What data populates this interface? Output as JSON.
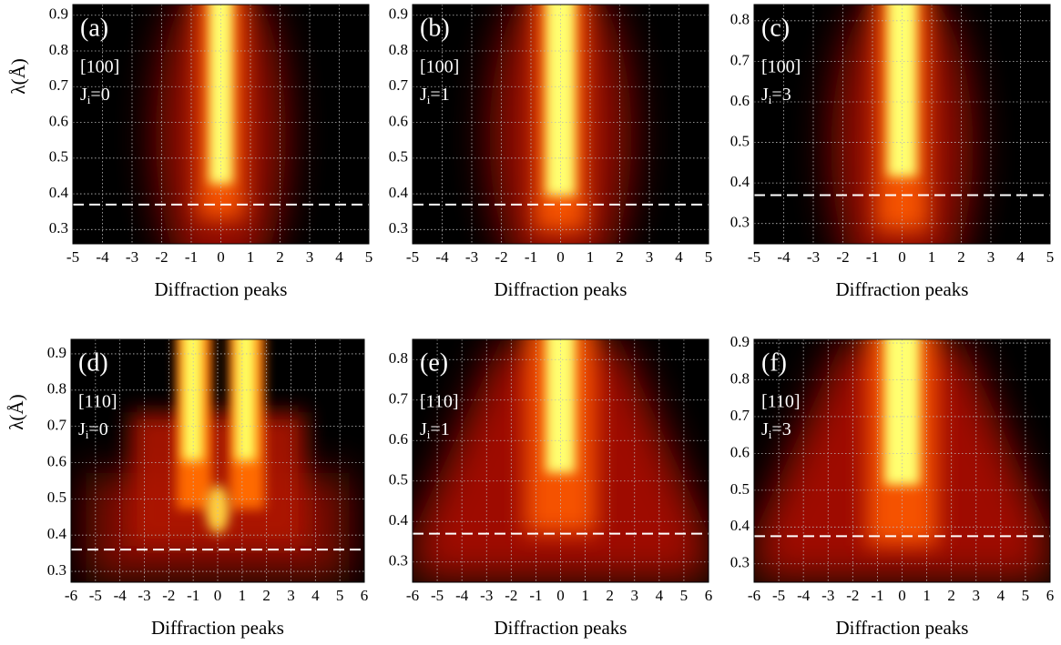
{
  "chart_data": [
    {
      "type": "heatmap",
      "panel": "(a)",
      "direction": "[100]",
      "state": {
        "symbol": "J",
        "subscript": "i",
        "value": "=0"
      },
      "xlabel": "Diffraction peaks",
      "ylabel": "λ(Å)",
      "xlim": [
        -5,
        5
      ],
      "xticks": [
        -5,
        -4,
        -3,
        -2,
        -1,
        0,
        1,
        2,
        3,
        4,
        5
      ],
      "ylim": [
        0.26,
        0.93
      ],
      "yticks": [
        0.3,
        0.4,
        0.5,
        0.6,
        0.7,
        0.8,
        0.9
      ],
      "hline": 0.37,
      "grid": true
    },
    {
      "type": "heatmap",
      "panel": "(b)",
      "direction": "[100]",
      "state": {
        "symbol": "J",
        "subscript": "i",
        "value": "=1"
      },
      "xlabel": "Diffraction peaks",
      "xlim": [
        -5,
        5
      ],
      "xticks": [
        -5,
        -4,
        -3,
        -2,
        -1,
        0,
        1,
        2,
        3,
        4,
        5
      ],
      "ylim": [
        0.26,
        0.93
      ],
      "yticks": [
        0.3,
        0.4,
        0.5,
        0.6,
        0.7,
        0.8,
        0.9
      ],
      "hline": 0.37,
      "grid": true
    },
    {
      "type": "heatmap",
      "panel": "(c)",
      "direction": "[100]",
      "state": {
        "symbol": "J",
        "subscript": "i",
        "value": "=3"
      },
      "xlabel": "Diffraction peaks",
      "xlim": [
        -5,
        5
      ],
      "xticks": [
        -5,
        -4,
        -3,
        -2,
        -1,
        0,
        1,
        2,
        3,
        4,
        5
      ],
      "ylim": [
        0.25,
        0.84
      ],
      "yticks": [
        0.3,
        0.4,
        0.5,
        0.6,
        0.7,
        0.8
      ],
      "hline": 0.37,
      "grid": true
    },
    {
      "type": "heatmap",
      "panel": "(d)",
      "direction": "[110]",
      "state": {
        "symbol": "J",
        "subscript": "i",
        "value": "=0"
      },
      "xlabel": "Diffraction peaks",
      "ylabel": "λ(Å)",
      "xlim": [
        -6,
        6
      ],
      "xticks": [
        -6,
        -5,
        -4,
        -3,
        -2,
        -1,
        0,
        1,
        2,
        3,
        4,
        5,
        6
      ],
      "ylim": [
        0.27,
        0.94
      ],
      "yticks": [
        0.3,
        0.4,
        0.5,
        0.6,
        0.7,
        0.8,
        0.9
      ],
      "hline": 0.36,
      "grid": true
    },
    {
      "type": "heatmap",
      "panel": "(e)",
      "direction": "[110]",
      "state": {
        "symbol": "J",
        "subscript": "i",
        "value": "=1"
      },
      "xlabel": "Diffraction peaks",
      "xlim": [
        -6,
        6
      ],
      "xticks": [
        -6,
        -5,
        -4,
        -3,
        -2,
        -1,
        0,
        1,
        2,
        3,
        4,
        5,
        6
      ],
      "ylim": [
        0.25,
        0.85
      ],
      "yticks": [
        0.3,
        0.4,
        0.5,
        0.6,
        0.7,
        0.8
      ],
      "hline": 0.37,
      "grid": true
    },
    {
      "type": "heatmap",
      "panel": "(f)",
      "direction": "[110]",
      "state": {
        "symbol": "J",
        "subscript": "i",
        "value": "=3"
      },
      "xlabel": "Diffraction peaks",
      "xlim": [
        -6,
        6
      ],
      "xticks": [
        -6,
        -5,
        -4,
        -3,
        -2,
        -1,
        0,
        1,
        2,
        3,
        4,
        5,
        6
      ],
      "ylim": [
        0.25,
        0.91
      ],
      "yticks": [
        0.3,
        0.4,
        0.5,
        0.6,
        0.7,
        0.8,
        0.9
      ],
      "hline": 0.375,
      "grid": true
    }
  ]
}
